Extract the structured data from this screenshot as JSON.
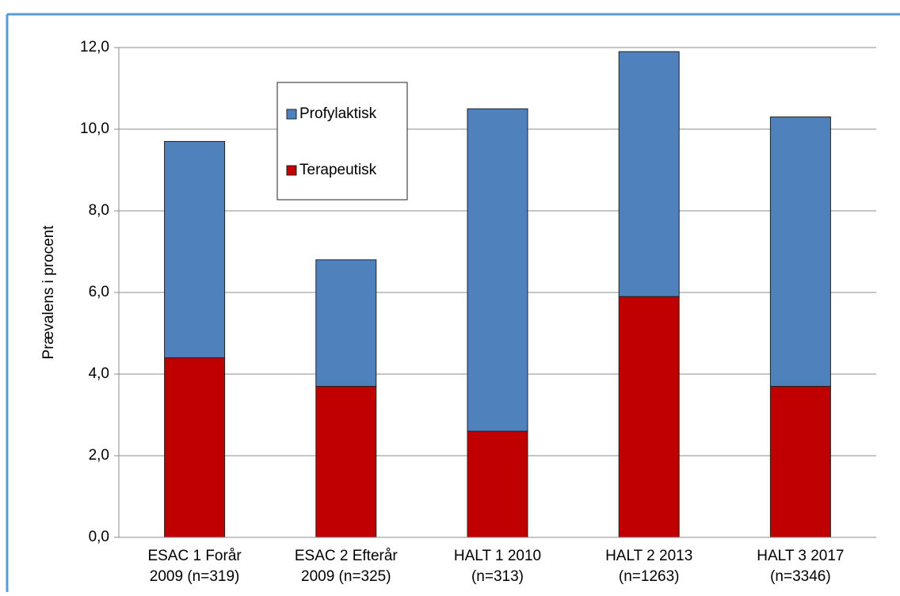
{
  "chart_data": {
    "type": "stacked-bar",
    "y_label": "Prævalens i procent",
    "categories": [
      [
        "ESAC 1 Forår",
        "2009 (n=319)"
      ],
      [
        "ESAC 2 Efterår",
        "2009 (n=325)"
      ],
      [
        "HALT 1 2010",
        "(n=313)"
      ],
      [
        "HALT 2 2013",
        "(n=1263)"
      ],
      [
        "HALT 3 2017",
        "(n=3346)"
      ]
    ],
    "series": [
      {
        "name": "Terapeutisk",
        "color": "#c00000",
        "values": [
          4.4,
          3.7,
          2.6,
          5.9,
          3.7
        ]
      },
      {
        "name": "Profylaktisk",
        "color": "#4f81bd",
        "values": [
          5.3,
          3.1,
          7.9,
          6.0,
          6.6
        ]
      }
    ],
    "ylim": [
      0,
      12
    ],
    "yticks": [
      {
        "value": 0,
        "label": "0,0"
      },
      {
        "value": 2,
        "label": "2,0"
      },
      {
        "value": 4,
        "label": "4,0"
      },
      {
        "value": 6,
        "label": "6,0"
      },
      {
        "value": 8,
        "label": "8,0"
      },
      {
        "value": 10,
        "label": "10,0"
      },
      {
        "value": 12,
        "label": "12,0"
      }
    ],
    "grid": true
  }
}
